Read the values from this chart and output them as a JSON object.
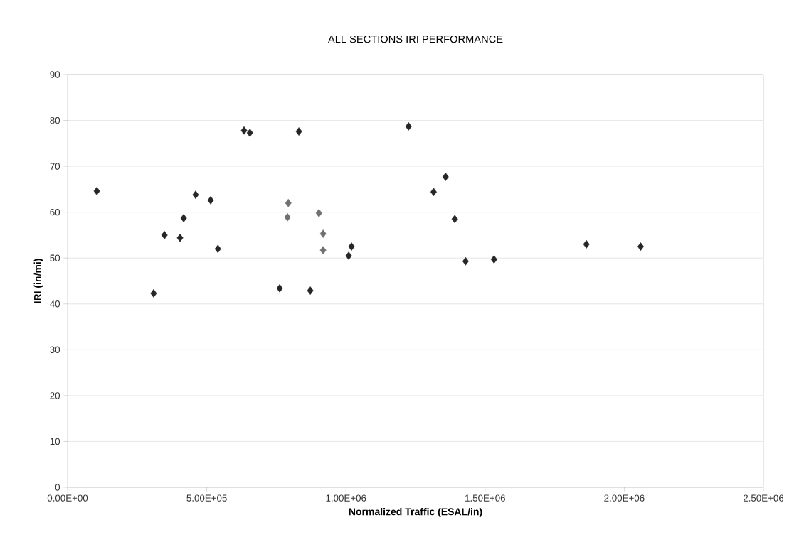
{
  "chart_data": {
    "type": "scatter",
    "title": "ALL SECTIONS IRI PERFORMANCE",
    "xlabel": "Normalized Traffic (ESAL/in)",
    "ylabel": "IRI (in/mi)",
    "series": [
      {
        "color": "#262626",
        "x": [
          105000,
          309000,
          348000,
          404000,
          417000,
          460000,
          514000,
          540000,
          634000,
          655000,
          831000,
          762000,
          872000,
          1020000,
          1010000,
          1225000,
          1358000,
          1315000,
          1391000,
          1430000,
          1532000,
          1864000,
          2059000
        ],
        "values": [
          64.6,
          42.3,
          55.0,
          54.4,
          58.7,
          63.8,
          62.6,
          52.0,
          77.8,
          77.3,
          77.6,
          43.4,
          42.9,
          52.5,
          50.5,
          78.7,
          67.7,
          64.4,
          58.5,
          49.3,
          49.7,
          53.0,
          52.5
        ]
      },
      {
        "color": "#707070",
        "x": [
          793000,
          790000,
          903000,
          918000,
          918000
        ],
        "values": [
          62.0,
          58.9,
          59.8,
          55.3,
          51.7
        ]
      }
    ],
    "xlim": [
      0,
      2500000
    ],
    "ylim": [
      0,
      90
    ],
    "xticks": [
      {
        "value": 0,
        "label": "0.00E+00"
      },
      {
        "value": 500000,
        "label": "5.00E+05"
      },
      {
        "value": 1000000,
        "label": "1.00E+06"
      },
      {
        "value": 1500000,
        "label": "1.50E+06"
      },
      {
        "value": 2000000,
        "label": "2.00E+06"
      },
      {
        "value": 2500000,
        "label": "2.50E+06"
      }
    ],
    "yticks": [
      0,
      10,
      20,
      30,
      40,
      50,
      60,
      70,
      80,
      90
    ],
    "grid": "y",
    "marker": "diamond"
  }
}
